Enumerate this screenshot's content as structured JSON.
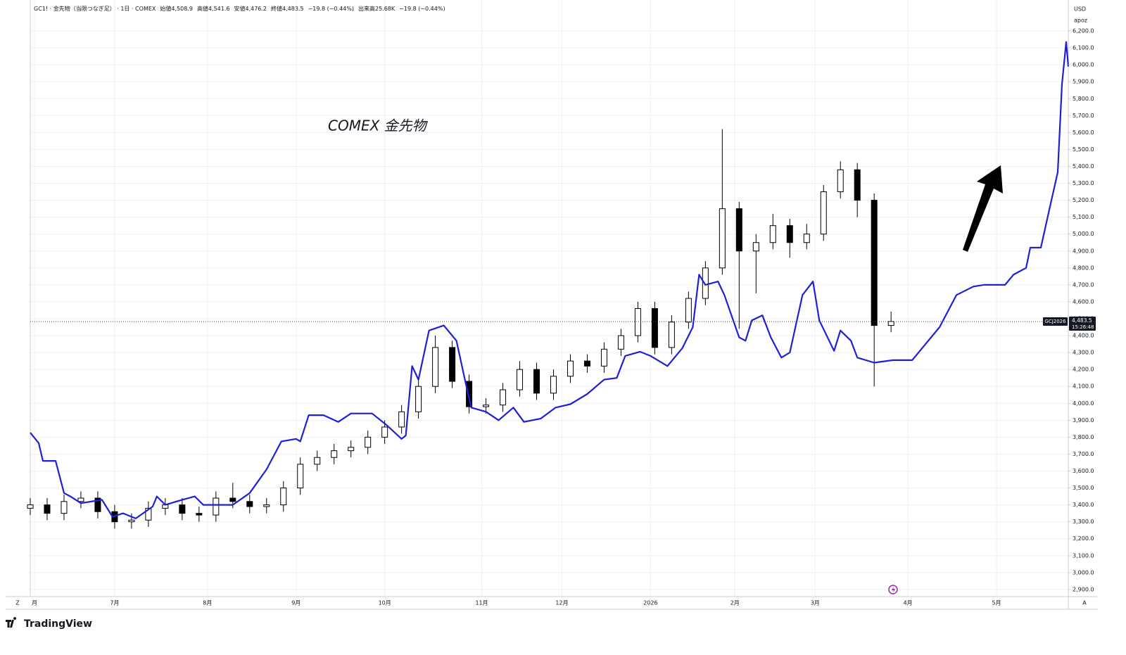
{
  "chart_data": {
    "type": "candlestick",
    "header": [
      "GC1! · 金先物（当限つなぎ足） · 1日 · COMEX",
      "始値4,508.9",
      "高値4,541.6",
      "安値4,476.2",
      "終値4,483.5",
      "−19.8 (−0.44%)",
      "出来高25.68K",
      "−19.8 (−0.44%)"
    ],
    "annotation": "COMEX 金先物",
    "currency": "USD",
    "currency_sub": "apoz",
    "symbol_tag": "GCJ2026",
    "last_price": {
      "value": 4483.5,
      "label": "4,483.5",
      "time": "15:26:48"
    },
    "brand": "TradingView",
    "corner_left": "Z",
    "corner_right": "A",
    "grid": true,
    "xlim": [
      0,
      246
    ],
    "ylim": [
      2858,
      6383
    ],
    "xticks": [
      {
        "value": 1,
        "label": "月"
      },
      {
        "value": 20,
        "label": "7月"
      },
      {
        "value": 42,
        "label": "8月"
      },
      {
        "value": 63,
        "label": "9月"
      },
      {
        "value": 84,
        "label": "10月"
      },
      {
        "value": 107,
        "label": "11月"
      },
      {
        "value": 126,
        "label": "12月"
      },
      {
        "value": 147,
        "label": "2026"
      },
      {
        "value": 167,
        "label": "2月"
      },
      {
        "value": 186,
        "label": "3月"
      },
      {
        "value": 208,
        "label": "4月"
      },
      {
        "value": 229,
        "label": "5月"
      }
    ],
    "yticks": [
      {
        "value": 2900,
        "label": "2,900.0"
      },
      {
        "value": 3000,
        "label": "3,000.0"
      },
      {
        "value": 3100,
        "label": "3,100.0"
      },
      {
        "value": 3200,
        "label": "3,200.0"
      },
      {
        "value": 3300,
        "label": "3,300.0"
      },
      {
        "value": 3400,
        "label": "3,400.0"
      },
      {
        "value": 3500,
        "label": "3,500.0"
      },
      {
        "value": 3600,
        "label": "3,600.0"
      },
      {
        "value": 3700,
        "label": "3,700.0"
      },
      {
        "value": 3800,
        "label": "3,800.0"
      },
      {
        "value": 3900,
        "label": "3,900.0"
      },
      {
        "value": 4000,
        "label": "4,000.0"
      },
      {
        "value": 4100,
        "label": "4,100.0"
      },
      {
        "value": 4200,
        "label": "4,200.0"
      },
      {
        "value": 4300,
        "label": "4,300.0"
      },
      {
        "value": 4400,
        "label": "4,400.0"
      },
      {
        "value": 4500,
        "label": "4,500.0"
      },
      {
        "value": 4600,
        "label": "4,600.0"
      },
      {
        "value": 4700,
        "label": "4,700.0"
      },
      {
        "value": 4800,
        "label": "4,800.0"
      },
      {
        "value": 4900,
        "label": "4,900.0"
      },
      {
        "value": 5000,
        "label": "5,000.0"
      },
      {
        "value": 5100,
        "label": "5,100.0"
      },
      {
        "value": 5200,
        "label": "5,200.0"
      },
      {
        "value": 5300,
        "label": "5,300.0"
      },
      {
        "value": 5400,
        "label": "5,400.0"
      },
      {
        "value": 5500,
        "label": "5,500.0"
      },
      {
        "value": 5600,
        "label": "5,600.0"
      },
      {
        "value": 5700,
        "label": "5,700.0"
      },
      {
        "value": 5800,
        "label": "5,800.0"
      },
      {
        "value": 5900,
        "label": "5,900.0"
      },
      {
        "value": 6000,
        "label": "6,000.0"
      },
      {
        "value": 6100,
        "label": "6,100.0"
      },
      {
        "value": 6200,
        "label": "6,200.0"
      }
    ],
    "series": [
      {
        "type": "candlestick",
        "up_color": "#ffffff",
        "down_color": "#000000",
        "outline": "#000000",
        "x": [
          0,
          4,
          8,
          12,
          16,
          20,
          24,
          28,
          32,
          36,
          40,
          44,
          48,
          52,
          56,
          60,
          64,
          68,
          72,
          76,
          80,
          84,
          88,
          92,
          96,
          100,
          104,
          108,
          112,
          116,
          120,
          124,
          128,
          132,
          136,
          140,
          144,
          148,
          152,
          156,
          160,
          164,
          168,
          172,
          176,
          180,
          184,
          188,
          192,
          196,
          200,
          204
        ],
        "open": [
          3380,
          3400,
          3350,
          3420,
          3440,
          3360,
          3300,
          3310,
          3380,
          3400,
          3350,
          3340,
          3440,
          3420,
          3390,
          3400,
          3500,
          3640,
          3680,
          3720,
          3740,
          3800,
          3860,
          3950,
          4100,
          4330,
          4130,
          3980,
          3990,
          4080,
          4200,
          4060,
          4160,
          4250,
          4220,
          4320,
          4400,
          4560,
          4330,
          4480,
          4620,
          4800,
          5150,
          4900,
          4950,
          5050,
          4950,
          5000,
          5250,
          5380,
          5200,
          4460
        ],
        "high": [
          3440,
          3440,
          3460,
          3480,
          3480,
          3400,
          3350,
          3420,
          3440,
          3440,
          3390,
          3480,
          3530,
          3460,
          3440,
          3540,
          3680,
          3720,
          3760,
          3780,
          3840,
          3900,
          3990,
          4140,
          4400,
          4370,
          4170,
          4030,
          4120,
          4250,
          4240,
          4200,
          4290,
          4290,
          4360,
          4440,
          4600,
          4600,
          4520,
          4660,
          4840,
          5620,
          5190,
          5000,
          5120,
          5090,
          5060,
          5290,
          5430,
          5420,
          5240,
          4541.6
        ],
        "low": [
          3340,
          3310,
          3310,
          3380,
          3320,
          3260,
          3260,
          3270,
          3340,
          3310,
          3300,
          3300,
          3380,
          3350,
          3350,
          3360,
          3460,
          3600,
          3640,
          3680,
          3700,
          3760,
          3820,
          3910,
          4060,
          4090,
          3940,
          3940,
          3950,
          4040,
          4020,
          4020,
          4120,
          4180,
          4180,
          4280,
          4360,
          4290,
          4290,
          4440,
          4580,
          4760,
          4440,
          4650,
          4910,
          4860,
          4910,
          4960,
          5210,
          5100,
          4100,
          4420
        ],
        "close": [
          3400,
          3350,
          3420,
          3440,
          3360,
          3300,
          3310,
          3380,
          3400,
          3350,
          3340,
          3440,
          3420,
          3390,
          3400,
          3500,
          3640,
          3680,
          3720,
          3740,
          3800,
          3860,
          3950,
          4100,
          4330,
          4130,
          3980,
          3990,
          4080,
          4200,
          4060,
          4160,
          4250,
          4220,
          4320,
          4400,
          4560,
          4330,
          4480,
          4620,
          4800,
          5150,
          4900,
          4950,
          5050,
          4950,
          5000,
          5250,
          5380,
          5200,
          4460,
          4483.5
        ]
      },
      {
        "type": "line",
        "color": "#1f1fd6",
        "x": [
          0,
          2,
          3,
          4.5,
          6,
          8,
          9.5,
          12,
          17,
          19.5,
          22,
          25,
          29,
          30,
          32,
          36,
          39,
          41,
          48,
          52,
          56,
          59.5,
          63,
          64,
          66,
          69.5,
          73,
          76,
          81,
          84.5,
          88,
          89,
          90.5,
          92,
          94.5,
          98,
          101,
          103,
          104.5,
          108,
          111,
          114.5,
          117,
          121,
          124.5,
          128,
          132,
          136,
          139,
          141,
          144.5,
          147,
          151,
          154.5,
          157,
          158.5,
          160,
          163,
          164.5,
          168,
          169.5,
          171,
          173.5,
          175.5,
          178,
          180,
          183,
          185.5,
          187,
          190.5,
          192,
          194.5,
          196,
          200,
          204.5,
          209,
          212,
          215.5,
          219.5,
          223.5,
          226,
          231,
          233,
          236,
          237,
          239.5,
          242,
          243.5,
          244.5,
          245.5,
          246
        ],
        "values": [
          3827,
          3765,
          3660,
          3660,
          3660,
          3470,
          3450,
          3410,
          3430,
          3330,
          3350,
          3320,
          3390,
          3450,
          3400,
          3430,
          3450,
          3400,
          3400,
          3470,
          3610,
          3775,
          3790,
          3775,
          3930,
          3930,
          3890,
          3940,
          3940,
          3870,
          3790,
          3810,
          4220,
          4140,
          4430,
          4460,
          4370,
          4140,
          3975,
          3950,
          3900,
          3975,
          3890,
          3910,
          3975,
          3995,
          4055,
          4140,
          4150,
          4280,
          4305,
          4280,
          4220,
          4325,
          4450,
          4760,
          4700,
          4720,
          4640,
          4390,
          4370,
          4490,
          4520,
          4390,
          4270,
          4300,
          4640,
          4720,
          4490,
          4310,
          4430,
          4370,
          4270,
          4240,
          4255,
          4255,
          4345,
          4450,
          4640,
          4690,
          4700,
          4700,
          4760,
          4800,
          4920,
          4920,
          5200,
          5365,
          5885,
          6135,
          5990
        ]
      }
    ]
  }
}
